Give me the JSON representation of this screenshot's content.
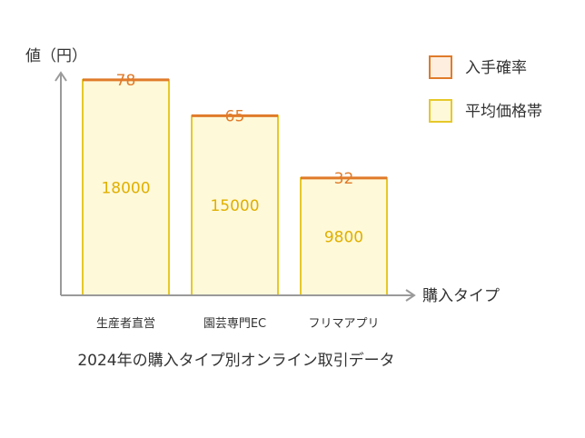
{
  "chart_data": {
    "type": "bar",
    "title": "2024年の購入タイプ別オンライン取引データ",
    "xlabel": "購入タイプ",
    "ylabel": "値（円）",
    "categories": [
      "生産者直営",
      "園芸専門EC",
      "フリマアプリ"
    ],
    "ylim": [
      0,
      18600
    ],
    "series": [
      {
        "name": "入手確率",
        "values": [
          78,
          65,
          32
        ],
        "color": "#e07b2a",
        "fill": "#fdeee0"
      },
      {
        "name": "平均価格帯",
        "values": [
          18000,
          15000,
          9800
        ],
        "color": "#e6c82a",
        "fill": "#fef9d9"
      }
    ],
    "grid": false,
    "legend": "top-right"
  }
}
